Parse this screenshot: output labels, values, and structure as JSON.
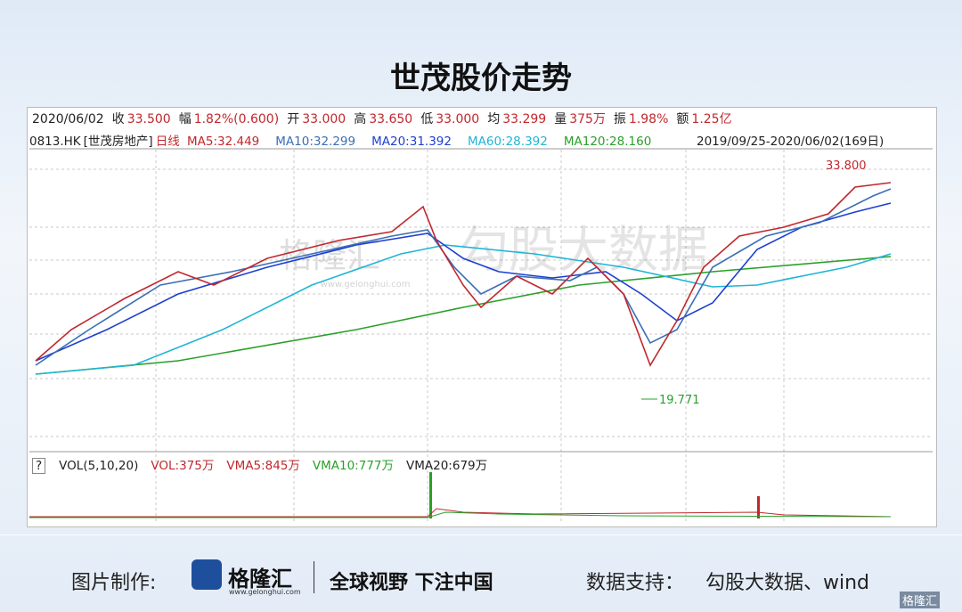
{
  "title": "世茂股价走势",
  "quote": {
    "date": "2020/06/02",
    "items": [
      {
        "label": "收",
        "value": "33.500"
      },
      {
        "label": "幅",
        "value": "1.82%(0.600)"
      },
      {
        "label": "开",
        "value": "33.000"
      },
      {
        "label": "高",
        "value": "33.650"
      },
      {
        "label": "低",
        "value": "33.000"
      },
      {
        "label": "均",
        "value": "33.299"
      },
      {
        "label": "量",
        "value": "375万"
      },
      {
        "label": "振",
        "value": "1.98%"
      },
      {
        "label": "额",
        "value": "1.25亿"
      }
    ]
  },
  "indicator": {
    "code": "0813.HK",
    "name": "[世茂房地产]",
    "period": "日线",
    "items": [
      {
        "text": "MA5:32.449",
        "color": "#c0282d"
      },
      {
        "text": "MA10:32.299",
        "color": "#3b6fb6"
      },
      {
        "text": "MA20:31.392",
        "color": "#1d3fd1"
      },
      {
        "text": "MA60:28.392",
        "color": "#1fb5d6"
      },
      {
        "text": "MA120:28.160",
        "color": "#2aa02a"
      }
    ],
    "range": "2019/09/25-2020/06/02(169日)"
  },
  "annotations": {
    "high": "33.800",
    "low": "19.771"
  },
  "watermark": {
    "brand": "格隆汇",
    "url": "www.gelonghui.com",
    "data": "勾股大数据"
  },
  "volume": {
    "mark": "?",
    "items": [
      {
        "text": "VOL(5,10,20)",
        "color": "#222"
      },
      {
        "text": "VOL:375万",
        "color": "#c0282d"
      },
      {
        "text": "VMA5:845万",
        "color": "#c0282d"
      },
      {
        "text": "VMA10:777万",
        "color": "#2aa02a"
      },
      {
        "text": "VMA20:679万",
        "color": "#222"
      }
    ]
  },
  "footer": {
    "maker_label": "图片制作:",
    "brand": "格隆汇",
    "url": "www.gelonghui.com",
    "slogan": "全球视野 下注中国",
    "source_label": "数据支持：",
    "source": "勾股大数据、wind",
    "corner": "格隆汇"
  }
}
